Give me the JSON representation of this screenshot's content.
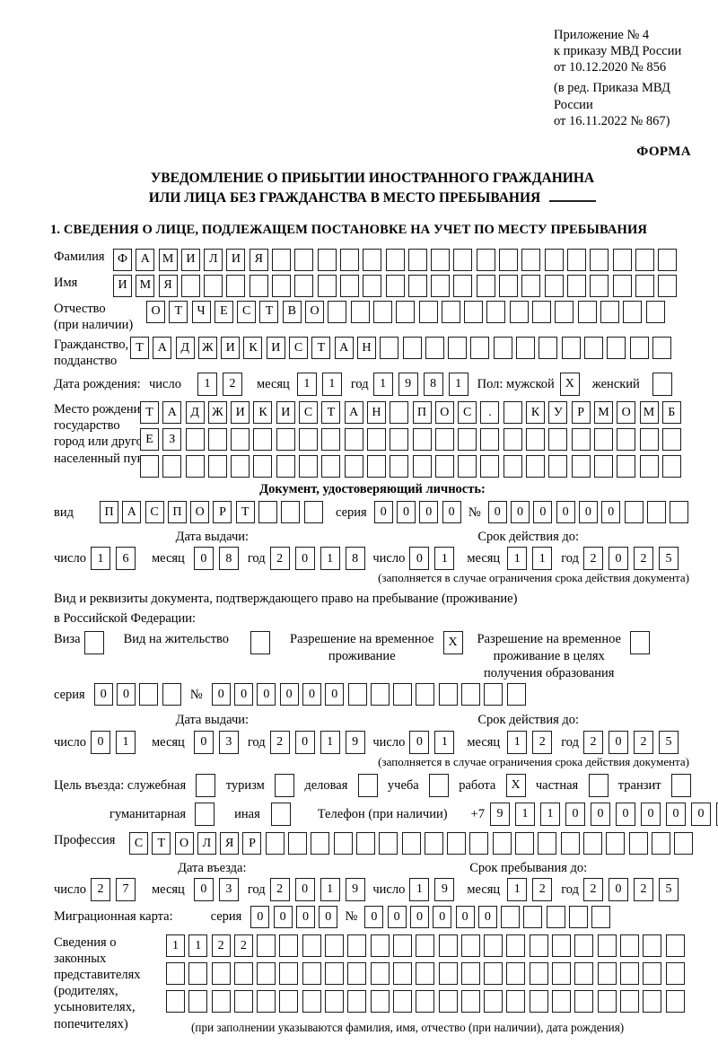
{
  "meta": {
    "appendix": [
      "Приложение № 4",
      "к приказу МВД России",
      "от 10.12.2020 № 856"
    ],
    "edition": [
      "(в ред. Приказа МВД России",
      "от 16.11.2022 № 867)"
    ],
    "form_label": "ФОРМА"
  },
  "title": {
    "line1": "УВЕДОМЛЕНИЕ О ПРИБЫТИИ ИНОСТРАННОГО ГРАЖДАНИНА",
    "line2": "ИЛИ ЛИЦА БЕЗ ГРАЖДАНСТВА В МЕСТО ПРЕБЫВАНИЯ"
  },
  "section1_heading": "1. СВЕДЕНИЯ О ЛИЦЕ, ПОДЛЕЖАЩЕМ ПОСТАНОВКЕ НА УЧЕТ ПО МЕСТУ ПРЕБЫВАНИЯ",
  "labels": {
    "surname": "Фамилия",
    "name": "Имя",
    "patronymic": "Отчество",
    "patronymic_note": "(при наличии)",
    "citizenship1": "Гражданство,",
    "citizenship2": "подданство",
    "birth_date": "Дата рождения:",
    "day": "число",
    "month": "месяц",
    "year": "год",
    "sex_male": "Пол: мужской",
    "sex_female": "женский",
    "birth_place": "Место рождения:",
    "state": "государство",
    "city1": "город или другой",
    "city2": "населенный пункт",
    "doc_heading": "Документ, удостоверяющий личность:",
    "kind": "вид",
    "series": "серия",
    "number": "№",
    "issue_date": "Дата выдачи:",
    "valid_until": "Срок действия до:",
    "valid_note": "(заполняется в случае ограничения срока действия документа)",
    "residence_doc1": "Вид и реквизиты документа, подтверждающего право на пребывание (проживание)",
    "residence_doc2": "в Российской Федерации:",
    "visa": "Виза",
    "residence_permit": "Вид на жительство",
    "temp_permit1": "Разрешение на временное",
    "temp_permit2": "проживание",
    "temp_edu1": "Разрешение на временное",
    "temp_edu2": "проживание в целях",
    "temp_edu3": "получения образования",
    "purpose": "Цель въезда: служебная",
    "tourism": "туризм",
    "business": "деловая",
    "study": "учеба",
    "work": "работа",
    "private": "частная",
    "transit": "транзит",
    "humanitarian": "гуманитарная",
    "other": "иная",
    "phone": "Телефон (при наличии)",
    "phone_prefix": "+7",
    "profession": "Профессия",
    "entry_date": "Дата въезда:",
    "stay_until": "Срок пребывания до:",
    "migration_card": "Миграционная карта:",
    "representatives": [
      "Сведения о",
      "законных",
      "представителях",
      "(родителях,",
      "усыновителях,",
      "попечителях)"
    ],
    "representatives_note": "(при заполнении указываются фамилия, имя, отчество (при наличии), дата рождения)"
  },
  "values": {
    "surname": {
      "chars": "ФАМИЛИЯ",
      "count": 25
    },
    "name": {
      "chars": "ИМЯ",
      "count": 25
    },
    "patronymic": {
      "chars": "ОТЧЕСТВО",
      "count": 23
    },
    "citizenship": {
      "chars": "ТАДЖИКИСТАН",
      "count": 24
    },
    "birth": {
      "day": {
        "chars": "12",
        "count": 2
      },
      "month": {
        "chars": "11",
        "count": 2
      },
      "year": {
        "chars": "1981",
        "count": 4
      }
    },
    "sex": {
      "male": {
        "chars": "X",
        "count": 1
      },
      "female": {
        "chars": "",
        "count": 1
      }
    },
    "birth_place": {
      "row1": {
        "chars": "ТАДЖИКИСТАН ПОС. КУРМОМБ",
        "count": 24
      },
      "row2": {
        "chars": "ЕЗ",
        "count": 24
      },
      "row3": {
        "chars": "",
        "count": 24
      }
    },
    "passport": {
      "kind": {
        "chars": "ПАСПОРТ",
        "count": 10
      },
      "series": {
        "chars": "0000",
        "count": 4
      },
      "number": {
        "chars": "000000",
        "count": 9
      },
      "issue": {
        "day": {
          "chars": "16",
          "count": 2
        },
        "month": {
          "chars": "08",
          "count": 2
        },
        "year": {
          "chars": "2018",
          "count": 4
        }
      },
      "expiry": {
        "day": {
          "chars": "01",
          "count": 2
        },
        "month": {
          "chars": "11",
          "count": 2
        },
        "year": {
          "chars": "2025",
          "count": 4
        }
      }
    },
    "permit_type": {
      "visa": {
        "chars": "",
        "count": 1
      },
      "residence": {
        "chars": "",
        "count": 1
      },
      "temp": {
        "chars": "X",
        "count": 1
      },
      "temp_edu": {
        "chars": "",
        "count": 1
      }
    },
    "permit": {
      "series": {
        "chars": "00",
        "count": 4
      },
      "number": {
        "chars": "000000",
        "count": 14
      },
      "issue": {
        "day": {
          "chars": "01",
          "count": 2
        },
        "month": {
          "chars": "03",
          "count": 2
        },
        "year": {
          "chars": "2019",
          "count": 4
        }
      },
      "expiry": {
        "day": {
          "chars": "01",
          "count": 2
        },
        "month": {
          "chars": "12",
          "count": 2
        },
        "year": {
          "chars": "2025",
          "count": 4
        }
      }
    },
    "purpose": {
      "official": {
        "chars": "",
        "count": 1
      },
      "tourism": {
        "chars": "",
        "count": 1
      },
      "business": {
        "chars": "",
        "count": 1
      },
      "study": {
        "chars": "",
        "count": 1
      },
      "work": {
        "chars": "X",
        "count": 1
      },
      "private": {
        "chars": "",
        "count": 1
      },
      "transit": {
        "chars": "",
        "count": 1
      },
      "humanitarian": {
        "chars": "",
        "count": 1
      },
      "other": {
        "chars": "",
        "count": 1
      }
    },
    "phone": {
      "chars": "911000000",
      "count": 10
    },
    "profession": {
      "chars": "СТОЛЯР",
      "count": 25
    },
    "entry": {
      "day": {
        "chars": "27",
        "count": 2
      },
      "month": {
        "chars": "03",
        "count": 2
      },
      "year": {
        "chars": "2019",
        "count": 4
      }
    },
    "stay": {
      "day": {
        "chars": "19",
        "count": 2
      },
      "month": {
        "chars": "12",
        "count": 2
      },
      "year": {
        "chars": "2025",
        "count": 4
      }
    },
    "migration": {
      "series": {
        "chars": "0000",
        "count": 4
      },
      "number": {
        "chars": "000000",
        "count": 11
      }
    },
    "representatives": {
      "row1": {
        "chars": "1122",
        "count": 23
      },
      "row2": {
        "chars": "",
        "count": 23
      },
      "row3": {
        "chars": "",
        "count": 23
      }
    }
  }
}
